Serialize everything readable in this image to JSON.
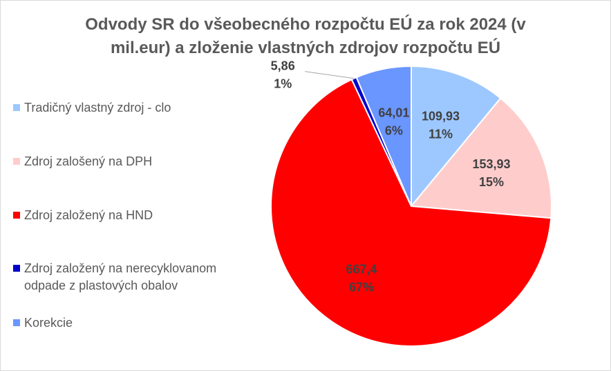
{
  "chart_data": {
    "type": "pie",
    "title": "Odvody SR do všeobecného rozpočtu EÚ za rok 2024 (v mil.eur) a zloženie vlastných zdrojov rozpočtu EÚ",
    "categories": [
      "Tradičný vlastný zdroj - clo",
      "Zdroj zalošený na DPH",
      "Zdroj založený na HND",
      "Zdroj založený na nerecyklovanom odpade z plastových obalov",
      "Korekcie"
    ],
    "values": [
      109.93,
      153.93,
      667.4,
      5.86,
      64.01
    ],
    "value_labels": [
      "109,93",
      "153,93",
      "667,4",
      "5,86",
      "64,01"
    ],
    "percent_labels": [
      "11%",
      "15%",
      "67%",
      "1%",
      "6%"
    ],
    "colors": [
      "#9dc8ff",
      "#ffcccc",
      "#ff0000",
      "#0000cc",
      "#6a96ff"
    ],
    "legend": "left"
  }
}
